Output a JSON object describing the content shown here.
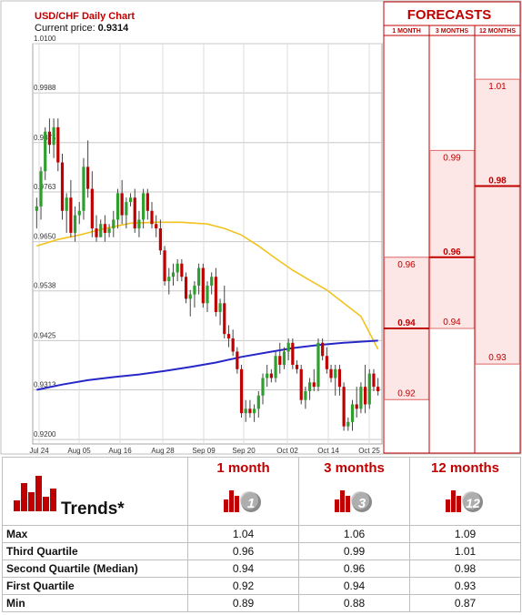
{
  "chart_data": {
    "type": "candlestick",
    "title": "USD/CHF Daily Chart",
    "price_label": "Current price:",
    "current_price": "0.9314",
    "y_ticks": [
      "1.0100",
      "0.9988",
      "0.9875",
      "0.9763",
      "0.9650",
      "0.9538",
      "0.9425",
      "0.9313",
      "0.9200"
    ],
    "ylim": [
      0.919,
      1.01
    ],
    "x_ticks": [
      "Jul 24",
      "Aug 05",
      "Aug 16",
      "Aug 28",
      "Sep 09",
      "Sep 20",
      "Oct 02",
      "Oct 14",
      "Oct 25"
    ],
    "candles": [
      {
        "o": 0.972,
        "h": 0.975,
        "l": 0.968,
        "c": 0.973
      },
      {
        "o": 0.973,
        "h": 0.982,
        "l": 0.97,
        "c": 0.981
      },
      {
        "o": 0.981,
        "h": 0.991,
        "l": 0.979,
        "c": 0.99
      },
      {
        "o": 0.99,
        "h": 0.993,
        "l": 0.985,
        "c": 0.987
      },
      {
        "o": 0.987,
        "h": 0.993,
        "l": 0.984,
        "c": 0.991
      },
      {
        "o": 0.991,
        "h": 0.993,
        "l": 0.981,
        "c": 0.983
      },
      {
        "o": 0.983,
        "h": 0.985,
        "l": 0.97,
        "c": 0.972
      },
      {
        "o": 0.972,
        "h": 0.976,
        "l": 0.967,
        "c": 0.975
      },
      {
        "o": 0.975,
        "h": 0.979,
        "l": 0.966,
        "c": 0.967
      },
      {
        "o": 0.967,
        "h": 0.973,
        "l": 0.965,
        "c": 0.971
      },
      {
        "o": 0.971,
        "h": 0.974,
        "l": 0.969,
        "c": 0.972
      },
      {
        "o": 0.972,
        "h": 0.984,
        "l": 0.97,
        "c": 0.982
      },
      {
        "o": 0.982,
        "h": 0.988,
        "l": 0.975,
        "c": 0.977
      },
      {
        "o": 0.977,
        "h": 0.981,
        "l": 0.966,
        "c": 0.968
      },
      {
        "o": 0.968,
        "h": 0.971,
        "l": 0.965,
        "c": 0.966
      },
      {
        "o": 0.966,
        "h": 0.97,
        "l": 0.966,
        "c": 0.969
      },
      {
        "o": 0.969,
        "h": 0.971,
        "l": 0.965,
        "c": 0.967
      },
      {
        "o": 0.967,
        "h": 0.969,
        "l": 0.966,
        "c": 0.968
      },
      {
        "o": 0.968,
        "h": 0.972,
        "l": 0.966,
        "c": 0.97
      },
      {
        "o": 0.97,
        "h": 0.977,
        "l": 0.968,
        "c": 0.976
      },
      {
        "o": 0.976,
        "h": 0.979,
        "l": 0.969,
        "c": 0.971
      },
      {
        "o": 0.971,
        "h": 0.975,
        "l": 0.968,
        "c": 0.974
      },
      {
        "o": 0.974,
        "h": 0.976,
        "l": 0.973,
        "c": 0.975
      },
      {
        "o": 0.975,
        "h": 0.977,
        "l": 0.967,
        "c": 0.968
      },
      {
        "o": 0.968,
        "h": 0.972,
        "l": 0.966,
        "c": 0.97
      },
      {
        "o": 0.97,
        "h": 0.977,
        "l": 0.968,
        "c": 0.976
      },
      {
        "o": 0.976,
        "h": 0.977,
        "l": 0.97,
        "c": 0.972
      },
      {
        "o": 0.972,
        "h": 0.974,
        "l": 0.968,
        "c": 0.969
      },
      {
        "o": 0.969,
        "h": 0.971,
        "l": 0.966,
        "c": 0.968
      },
      {
        "o": 0.968,
        "h": 0.97,
        "l": 0.962,
        "c": 0.963
      },
      {
        "o": 0.963,
        "h": 0.964,
        "l": 0.955,
        "c": 0.956
      },
      {
        "o": 0.956,
        "h": 0.959,
        "l": 0.953,
        "c": 0.957
      },
      {
        "o": 0.957,
        "h": 0.96,
        "l": 0.955,
        "c": 0.958
      },
      {
        "o": 0.958,
        "h": 0.961,
        "l": 0.956,
        "c": 0.96
      },
      {
        "o": 0.96,
        "h": 0.961,
        "l": 0.956,
        "c": 0.957
      },
      {
        "o": 0.957,
        "h": 0.958,
        "l": 0.951,
        "c": 0.952
      },
      {
        "o": 0.952,
        "h": 0.954,
        "l": 0.948,
        "c": 0.953
      },
      {
        "o": 0.953,
        "h": 0.956,
        "l": 0.95,
        "c": 0.955
      },
      {
        "o": 0.955,
        "h": 0.96,
        "l": 0.953,
        "c": 0.959
      },
      {
        "o": 0.959,
        "h": 0.96,
        "l": 0.95,
        "c": 0.951
      },
      {
        "o": 0.951,
        "h": 0.956,
        "l": 0.949,
        "c": 0.955
      },
      {
        "o": 0.955,
        "h": 0.958,
        "l": 0.953,
        "c": 0.957
      },
      {
        "o": 0.957,
        "h": 0.959,
        "l": 0.948,
        "c": 0.949
      },
      {
        "o": 0.949,
        "h": 0.952,
        "l": 0.946,
        "c": 0.951
      },
      {
        "o": 0.951,
        "h": 0.955,
        "l": 0.943,
        "c": 0.944
      },
      {
        "o": 0.944,
        "h": 0.946,
        "l": 0.941,
        "c": 0.943
      },
      {
        "o": 0.943,
        "h": 0.945,
        "l": 0.939,
        "c": 0.94
      },
      {
        "o": 0.94,
        "h": 0.941,
        "l": 0.935,
        "c": 0.936
      },
      {
        "o": 0.936,
        "h": 0.937,
        "l": 0.925,
        "c": 0.926
      },
      {
        "o": 0.926,
        "h": 0.929,
        "l": 0.924,
        "c": 0.927
      },
      {
        "o": 0.927,
        "h": 0.929,
        "l": 0.925,
        "c": 0.926
      },
      {
        "o": 0.926,
        "h": 0.928,
        "l": 0.924,
        "c": 0.927
      },
      {
        "o": 0.927,
        "h": 0.931,
        "l": 0.925,
        "c": 0.93
      },
      {
        "o": 0.93,
        "h": 0.935,
        "l": 0.928,
        "c": 0.934
      },
      {
        "o": 0.934,
        "h": 0.937,
        "l": 0.932,
        "c": 0.935
      },
      {
        "o": 0.935,
        "h": 0.936,
        "l": 0.933,
        "c": 0.934
      },
      {
        "o": 0.934,
        "h": 0.94,
        "l": 0.933,
        "c": 0.939
      },
      {
        "o": 0.939,
        "h": 0.942,
        "l": 0.935,
        "c": 0.937
      },
      {
        "o": 0.937,
        "h": 0.941,
        "l": 0.936,
        "c": 0.94
      },
      {
        "o": 0.94,
        "h": 0.943,
        "l": 0.938,
        "c": 0.942
      },
      {
        "o": 0.942,
        "h": 0.943,
        "l": 0.936,
        "c": 0.937
      },
      {
        "o": 0.937,
        "h": 0.938,
        "l": 0.935,
        "c": 0.936
      },
      {
        "o": 0.936,
        "h": 0.937,
        "l": 0.928,
        "c": 0.929
      },
      {
        "o": 0.929,
        "h": 0.932,
        "l": 0.927,
        "c": 0.931
      },
      {
        "o": 0.931,
        "h": 0.934,
        "l": 0.929,
        "c": 0.933
      },
      {
        "o": 0.933,
        "h": 0.936,
        "l": 0.931,
        "c": 0.932
      },
      {
        "o": 0.932,
        "h": 0.943,
        "l": 0.931,
        "c": 0.942
      },
      {
        "o": 0.942,
        "h": 0.943,
        "l": 0.938,
        "c": 0.939
      },
      {
        "o": 0.939,
        "h": 0.941,
        "l": 0.935,
        "c": 0.936
      },
      {
        "o": 0.936,
        "h": 0.937,
        "l": 0.933,
        "c": 0.934
      },
      {
        "o": 0.934,
        "h": 0.937,
        "l": 0.93,
        "c": 0.936
      },
      {
        "o": 0.936,
        "h": 0.937,
        "l": 0.93,
        "c": 0.932
      },
      {
        "o": 0.932,
        "h": 0.933,
        "l": 0.922,
        "c": 0.923
      },
      {
        "o": 0.923,
        "h": 0.925,
        "l": 0.922,
        "c": 0.924
      },
      {
        "o": 0.924,
        "h": 0.929,
        "l": 0.922,
        "c": 0.928
      },
      {
        "o": 0.928,
        "h": 0.932,
        "l": 0.925,
        "c": 0.927
      },
      {
        "o": 0.927,
        "h": 0.933,
        "l": 0.926,
        "c": 0.932
      },
      {
        "o": 0.932,
        "h": 0.937,
        "l": 0.926,
        "c": 0.928
      },
      {
        "o": 0.928,
        "h": 0.936,
        "l": 0.927,
        "c": 0.935
      },
      {
        "o": 0.935,
        "h": 0.936,
        "l": 0.931,
        "c": 0.932
      },
      {
        "o": 0.932,
        "h": 0.934,
        "l": 0.93,
        "c": 0.931
      }
    ],
    "series": [
      {
        "name": "",
        "color": "#f2c31f",
        "points": [
          [
            0,
            0.964
          ],
          [
            5,
            0.9655
          ],
          [
            10,
            0.9665
          ],
          [
            16,
            0.968
          ],
          [
            22,
            0.9692
          ],
          [
            28,
            0.9694
          ],
          [
            34,
            0.9694
          ],
          [
            40,
            0.969
          ],
          [
            44,
            0.968
          ],
          [
            48,
            0.9665
          ],
          [
            52,
            0.964
          ],
          [
            56,
            0.9612
          ],
          [
            60,
            0.9585
          ],
          [
            64,
            0.9562
          ],
          [
            68,
            0.954
          ],
          [
            72,
            0.951
          ],
          [
            76,
            0.948
          ],
          [
            80,
            0.9405
          ]
        ]
      },
      {
        "name": "",
        "color": "#2727c9",
        "points": [
          [
            0,
            0.9313
          ],
          [
            6,
            0.9325
          ],
          [
            12,
            0.9335
          ],
          [
            18,
            0.9342
          ],
          [
            24,
            0.9348
          ],
          [
            30,
            0.9356
          ],
          [
            36,
            0.9365
          ],
          [
            42,
            0.9375
          ],
          [
            48,
            0.9388
          ],
          [
            54,
            0.9398
          ],
          [
            60,
            0.9408
          ],
          [
            66,
            0.9415
          ],
          [
            72,
            0.942
          ],
          [
            80,
            0.9425
          ]
        ]
      }
    ]
  },
  "forecasts": {
    "title": "FORECASTS",
    "columns": [
      {
        "label": "1 MONTH",
        "range_low": 0.92,
        "range_high": 0.96,
        "median": 0.94,
        "low_label": "0.92",
        "high_label": "0.96",
        "median_label": "0.94"
      },
      {
        "label": "3 MONTHS",
        "range_low": 0.94,
        "range_high": 0.99,
        "median": 0.96,
        "low_label": "0.94",
        "high_label": "0.99",
        "median_label": "0.96"
      },
      {
        "label": "12 MONTHS",
        "range_low": 0.93,
        "range_high": 1.01,
        "median": 0.98,
        "low_label": "0.93",
        "high_label": "1.01",
        "median_label": "0.98"
      }
    ]
  },
  "trends": {
    "title": "Trends*",
    "horizons": [
      {
        "label": "1 month",
        "badge": "1"
      },
      {
        "label": "3 months",
        "badge": "3"
      },
      {
        "label": "12 months",
        "badge": "12"
      }
    ],
    "rows": [
      {
        "label": "Max",
        "values": [
          "1.04",
          "1.06",
          "1.09"
        ]
      },
      {
        "label": "Third Quartile",
        "values": [
          "0.96",
          "0.99",
          "1.01"
        ]
      },
      {
        "label": "Second Quartile (Median)",
        "values": [
          "0.94",
          "0.96",
          "0.98"
        ]
      },
      {
        "label": "First Quartile",
        "values": [
          "0.92",
          "0.94",
          "0.93"
        ]
      },
      {
        "label": "Min",
        "values": [
          "0.89",
          "0.88",
          "0.87"
        ]
      }
    ]
  },
  "colors": {
    "bull": "#2e9e2e",
    "bear": "#c00000",
    "accent": "#c00000",
    "band": "#fde6e6",
    "grid": "#d8d8d8"
  }
}
